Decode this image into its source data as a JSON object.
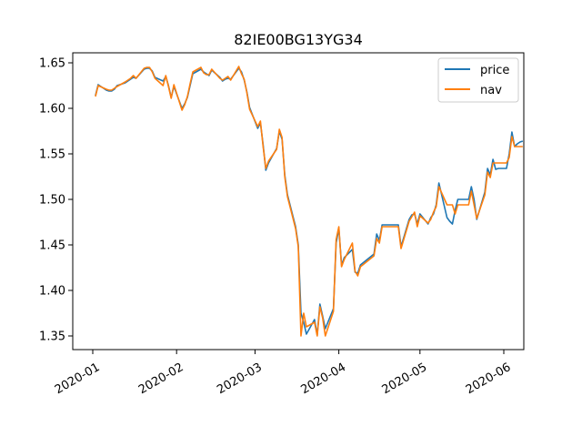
{
  "chart_data": {
    "type": "line",
    "title": "82IE00BG13YG34",
    "xlabel": "",
    "ylabel": "",
    "x_range": [
      "2020-01-01",
      "2020-06-01"
    ],
    "ylim": [
      1.335,
      1.661
    ],
    "x_ticks": [
      {
        "date": "2020-01-01",
        "label": "2020-01"
      },
      {
        "date": "2020-02-01",
        "label": "2020-02"
      },
      {
        "date": "2020-03-01",
        "label": "2020-03"
      },
      {
        "date": "2020-04-01",
        "label": "2020-04"
      },
      {
        "date": "2020-05-01",
        "label": "2020-05"
      },
      {
        "date": "2020-06-01",
        "label": "2020-06"
      }
    ],
    "y_ticks": [
      {
        "value": 1.35,
        "label": "1.35"
      },
      {
        "value": 1.4,
        "label": "1.40"
      },
      {
        "value": 1.45,
        "label": "1.45"
      },
      {
        "value": 1.5,
        "label": "1.50"
      },
      {
        "value": 1.55,
        "label": "1.55"
      },
      {
        "value": 1.6,
        "label": "1.60"
      },
      {
        "value": 1.65,
        "label": "1.65"
      }
    ],
    "grid": false,
    "legend": {
      "placement": "top-right"
    },
    "series": [
      {
        "name": "price",
        "color": "#1f77b4",
        "points": [
          [
            "2020-01-02",
            1.614
          ],
          [
            "2020-01-03",
            1.626
          ],
          [
            "2020-01-06",
            1.62
          ],
          [
            "2020-01-07",
            1.619
          ],
          [
            "2020-01-08",
            1.619
          ],
          [
            "2020-01-09",
            1.621
          ],
          [
            "2020-01-10",
            1.625
          ],
          [
            "2020-01-13",
            1.628
          ],
          [
            "2020-01-14",
            1.63
          ],
          [
            "2020-01-15",
            1.632
          ],
          [
            "2020-01-16",
            1.634
          ],
          [
            "2020-01-17",
            1.633
          ],
          [
            "2020-01-20",
            1.643
          ],
          [
            "2020-01-21",
            1.644
          ],
          [
            "2020-01-22",
            1.644
          ],
          [
            "2020-01-23",
            1.641
          ],
          [
            "2020-01-24",
            1.634
          ],
          [
            "2020-01-27",
            1.63
          ],
          [
            "2020-01-28",
            1.635
          ],
          [
            "2020-01-29",
            1.625
          ],
          [
            "2020-01-30",
            1.612
          ],
          [
            "2020-01-31",
            1.624
          ],
          [
            "2020-02-03",
            1.6
          ],
          [
            "2020-02-04",
            1.605
          ],
          [
            "2020-02-05",
            1.612
          ],
          [
            "2020-02-06",
            1.625
          ],
          [
            "2020-02-07",
            1.638
          ],
          [
            "2020-02-10",
            1.643
          ],
          [
            "2020-02-11",
            1.64
          ],
          [
            "2020-02-12",
            1.638
          ],
          [
            "2020-02-13",
            1.636
          ],
          [
            "2020-02-14",
            1.642
          ],
          [
            "2020-02-17",
            1.634
          ],
          [
            "2020-02-18",
            1.63
          ],
          [
            "2020-02-19",
            1.632
          ],
          [
            "2020-02-20",
            1.633
          ],
          [
            "2020-02-21",
            1.632
          ],
          [
            "2020-02-24",
            1.644
          ],
          [
            "2020-02-25",
            1.64
          ],
          [
            "2020-02-26",
            1.631
          ],
          [
            "2020-02-27",
            1.618
          ],
          [
            "2020-02-28",
            1.601
          ],
          [
            "2020-03-02",
            1.578
          ],
          [
            "2020-03-03",
            1.584
          ],
          [
            "2020-03-04",
            1.56
          ],
          [
            "2020-03-05",
            1.532
          ],
          [
            "2020-03-06",
            1.54
          ],
          [
            "2020-03-09",
            1.556
          ],
          [
            "2020-03-10",
            1.575
          ],
          [
            "2020-03-11",
            1.566
          ],
          [
            "2020-03-12",
            1.527
          ],
          [
            "2020-03-13",
            1.505
          ],
          [
            "2020-03-16",
            1.47
          ],
          [
            "2020-03-17",
            1.45
          ],
          [
            "2020-03-18",
            1.375
          ],
          [
            "2020-03-19",
            1.365
          ],
          [
            "2020-03-20",
            1.352
          ],
          [
            "2020-03-23",
            1.368
          ],
          [
            "2020-03-24",
            1.351
          ],
          [
            "2020-03-25",
            1.385
          ],
          [
            "2020-03-26",
            1.372
          ],
          [
            "2020-03-27",
            1.358
          ],
          [
            "2020-03-30",
            1.38
          ],
          [
            "2020-03-31",
            1.452
          ],
          [
            "2020-04-01",
            1.468
          ],
          [
            "2020-04-02",
            1.428
          ],
          [
            "2020-04-03",
            1.436
          ],
          [
            "2020-04-06",
            1.445
          ],
          [
            "2020-04-07",
            1.42
          ],
          [
            "2020-04-08",
            1.419
          ],
          [
            "2020-04-09",
            1.428
          ],
          [
            "2020-04-14",
            1.44
          ],
          [
            "2020-04-15",
            1.462
          ],
          [
            "2020-04-16",
            1.455
          ],
          [
            "2020-04-17",
            1.472
          ],
          [
            "2020-04-20",
            1.472
          ],
          [
            "2020-04-21",
            1.472
          ],
          [
            "2020-04-22",
            1.472
          ],
          [
            "2020-04-23",
            1.472
          ],
          [
            "2020-04-24",
            1.448
          ],
          [
            "2020-04-27",
            1.478
          ],
          [
            "2020-04-28",
            1.483
          ],
          [
            "2020-04-29",
            1.484
          ],
          [
            "2020-04-30",
            1.473
          ],
          [
            "2020-05-01",
            1.484
          ],
          [
            "2020-05-04",
            1.473
          ],
          [
            "2020-05-05",
            1.48
          ],
          [
            "2020-05-06",
            1.484
          ],
          [
            "2020-05-07",
            1.494
          ],
          [
            "2020-05-08",
            1.518
          ],
          [
            "2020-05-11",
            1.48
          ],
          [
            "2020-05-12",
            1.476
          ],
          [
            "2020-05-13",
            1.473
          ],
          [
            "2020-05-14",
            1.488
          ],
          [
            "2020-05-15",
            1.5
          ],
          [
            "2020-05-18",
            1.5
          ],
          [
            "2020-05-19",
            1.5
          ],
          [
            "2020-05-20",
            1.514
          ],
          [
            "2020-05-21",
            1.5
          ],
          [
            "2020-05-22",
            1.478
          ],
          [
            "2020-05-25",
            1.508
          ],
          [
            "2020-05-26",
            1.534
          ],
          [
            "2020-05-27",
            1.527
          ],
          [
            "2020-05-28",
            1.544
          ],
          [
            "2020-05-29",
            1.533
          ],
          [
            "2020-05-30",
            1.534
          ],
          [
            "2020-05-31",
            1.534
          ],
          [
            "2020-06-01",
            1.534
          ],
          [
            "2020-06-02",
            1.534
          ],
          [
            "2020-06-03",
            1.55
          ],
          [
            "2020-06-04",
            1.574
          ],
          [
            "2020-06-05",
            1.558
          ],
          [
            "2020-06-06",
            1.561
          ],
          [
            "2020-06-07",
            1.563
          ],
          [
            "2020-06-08",
            1.564
          ]
        ]
      },
      {
        "name": "nav",
        "color": "#ff7f0e",
        "points": [
          [
            "2020-01-02",
            1.613
          ],
          [
            "2020-01-03",
            1.625
          ],
          [
            "2020-01-06",
            1.621
          ],
          [
            "2020-01-07",
            1.62
          ],
          [
            "2020-01-08",
            1.62
          ],
          [
            "2020-01-09",
            1.622
          ],
          [
            "2020-01-10",
            1.624
          ],
          [
            "2020-01-13",
            1.629
          ],
          [
            "2020-01-14",
            1.631
          ],
          [
            "2020-01-15",
            1.633
          ],
          [
            "2020-01-16",
            1.636
          ],
          [
            "2020-01-17",
            1.633
          ],
          [
            "2020-01-20",
            1.644
          ],
          [
            "2020-01-21",
            1.645
          ],
          [
            "2020-01-22",
            1.645
          ],
          [
            "2020-01-23",
            1.64
          ],
          [
            "2020-01-24",
            1.633
          ],
          [
            "2020-01-27",
            1.625
          ],
          [
            "2020-01-28",
            1.636
          ],
          [
            "2020-01-29",
            1.624
          ],
          [
            "2020-01-30",
            1.611
          ],
          [
            "2020-01-31",
            1.626
          ],
          [
            "2020-02-03",
            1.598
          ],
          [
            "2020-02-04",
            1.604
          ],
          [
            "2020-02-05",
            1.613
          ],
          [
            "2020-02-06",
            1.627
          ],
          [
            "2020-02-07",
            1.64
          ],
          [
            "2020-02-10",
            1.645
          ],
          [
            "2020-02-11",
            1.639
          ],
          [
            "2020-02-12",
            1.637
          ],
          [
            "2020-02-13",
            1.637
          ],
          [
            "2020-02-14",
            1.643
          ],
          [
            "2020-02-17",
            1.633
          ],
          [
            "2020-02-18",
            1.631
          ],
          [
            "2020-02-19",
            1.633
          ],
          [
            "2020-02-20",
            1.635
          ],
          [
            "2020-02-21",
            1.631
          ],
          [
            "2020-02-24",
            1.646
          ],
          [
            "2020-02-25",
            1.638
          ],
          [
            "2020-02-26",
            1.632
          ],
          [
            "2020-02-27",
            1.617
          ],
          [
            "2020-02-28",
            1.599
          ],
          [
            "2020-03-02",
            1.58
          ],
          [
            "2020-03-03",
            1.586
          ],
          [
            "2020-03-04",
            1.558
          ],
          [
            "2020-03-05",
            1.534
          ],
          [
            "2020-03-06",
            1.542
          ],
          [
            "2020-03-09",
            1.555
          ],
          [
            "2020-03-10",
            1.577
          ],
          [
            "2020-03-11",
            1.568
          ],
          [
            "2020-03-12",
            1.525
          ],
          [
            "2020-03-13",
            1.503
          ],
          [
            "2020-03-16",
            1.468
          ],
          [
            "2020-03-17",
            1.448
          ],
          [
            "2020-03-18",
            1.35
          ],
          [
            "2020-03-19",
            1.375
          ],
          [
            "2020-03-20",
            1.36
          ],
          [
            "2020-03-23",
            1.365
          ],
          [
            "2020-03-24",
            1.35
          ],
          [
            "2020-03-25",
            1.382
          ],
          [
            "2020-03-26",
            1.37
          ],
          [
            "2020-03-27",
            1.35
          ],
          [
            "2020-03-30",
            1.377
          ],
          [
            "2020-03-31",
            1.456
          ],
          [
            "2020-04-01",
            1.47
          ],
          [
            "2020-04-02",
            1.426
          ],
          [
            "2020-04-03",
            1.434
          ],
          [
            "2020-04-06",
            1.452
          ],
          [
            "2020-04-07",
            1.421
          ],
          [
            "2020-04-08",
            1.416
          ],
          [
            "2020-04-09",
            1.426
          ],
          [
            "2020-04-14",
            1.438
          ],
          [
            "2020-04-15",
            1.457
          ],
          [
            "2020-04-16",
            1.452
          ],
          [
            "2020-04-17",
            1.47
          ],
          [
            "2020-04-20",
            1.47
          ],
          [
            "2020-04-21",
            1.47
          ],
          [
            "2020-04-22",
            1.47
          ],
          [
            "2020-04-23",
            1.47
          ],
          [
            "2020-04-24",
            1.446
          ],
          [
            "2020-04-27",
            1.476
          ],
          [
            "2020-04-28",
            1.481
          ],
          [
            "2020-04-29",
            1.486
          ],
          [
            "2020-04-30",
            1.47
          ],
          [
            "2020-05-01",
            1.482
          ],
          [
            "2020-05-04",
            1.474
          ],
          [
            "2020-05-05",
            1.478
          ],
          [
            "2020-05-06",
            1.486
          ],
          [
            "2020-05-07",
            1.492
          ],
          [
            "2020-05-08",
            1.514
          ],
          [
            "2020-05-11",
            1.494
          ],
          [
            "2020-05-12",
            1.494
          ],
          [
            "2020-05-13",
            1.494
          ],
          [
            "2020-05-14",
            1.484
          ],
          [
            "2020-05-15",
            1.494
          ],
          [
            "2020-05-18",
            1.494
          ],
          [
            "2020-05-19",
            1.494
          ],
          [
            "2020-05-20",
            1.509
          ],
          [
            "2020-05-21",
            1.494
          ],
          [
            "2020-05-22",
            1.479
          ],
          [
            "2020-05-25",
            1.505
          ],
          [
            "2020-05-26",
            1.53
          ],
          [
            "2020-05-27",
            1.524
          ],
          [
            "2020-05-28",
            1.54
          ],
          [
            "2020-05-29",
            1.54
          ],
          [
            "2020-05-30",
            1.54
          ],
          [
            "2020-05-31",
            1.54
          ],
          [
            "2020-06-01",
            1.54
          ],
          [
            "2020-06-02",
            1.54
          ],
          [
            "2020-06-03",
            1.546
          ],
          [
            "2020-06-04",
            1.569
          ],
          [
            "2020-06-05",
            1.558
          ],
          [
            "2020-06-06",
            1.558
          ],
          [
            "2020-06-07",
            1.558
          ],
          [
            "2020-06-08",
            1.558
          ]
        ]
      }
    ]
  }
}
